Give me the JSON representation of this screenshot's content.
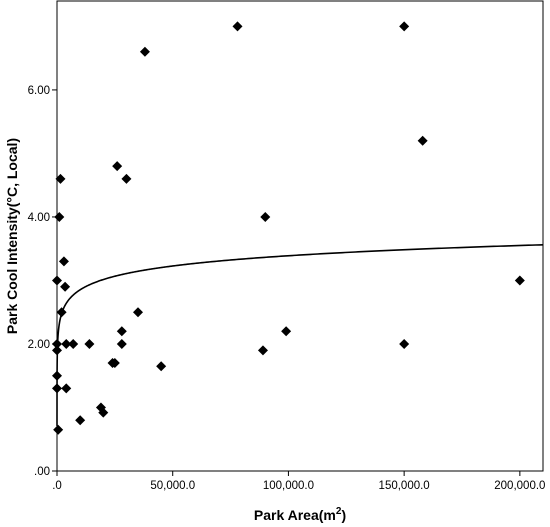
{
  "chart_data": {
    "type": "scatter",
    "xlabel": "Park Area",
    "xlabel_unit_base": "(m",
    "xlabel_unit_sup": "2",
    "xlabel_unit_end": ")",
    "ylabel": "Park Cool Intensity(°C, Local)",
    "xlim": [
      0,
      210000
    ],
    "ylim": [
      0,
      7.4
    ],
    "grid": false,
    "x_ticks": [
      {
        "value": 0,
        "label": ".0"
      },
      {
        "value": 50000,
        "label": "50,000.0"
      },
      {
        "value": 100000,
        "label": "100,000.0"
      },
      {
        "value": 150000,
        "label": "150,000.0"
      },
      {
        "value": 200000,
        "label": "200,000.0"
      }
    ],
    "y_ticks": [
      {
        "value": 0,
        "label": ".00"
      },
      {
        "value": 2,
        "label": "2.00"
      },
      {
        "value": 4,
        "label": "4.00"
      },
      {
        "value": 6,
        "label": "6.00"
      }
    ],
    "points": [
      {
        "x": 78000,
        "y": 7.0
      },
      {
        "x": 150000,
        "y": 7.0
      },
      {
        "x": 38000,
        "y": 6.6
      },
      {
        "x": 158000,
        "y": 5.2
      },
      {
        "x": 26000,
        "y": 4.8
      },
      {
        "x": 1500,
        "y": 4.6
      },
      {
        "x": 30000,
        "y": 4.6
      },
      {
        "x": 1000,
        "y": 4.0
      },
      {
        "x": 90000,
        "y": 4.0
      },
      {
        "x": 3000,
        "y": 3.3
      },
      {
        "x": 0,
        "y": 3.0
      },
      {
        "x": 3500,
        "y": 2.9
      },
      {
        "x": 200000,
        "y": 3.0
      },
      {
        "x": 2000,
        "y": 2.5
      },
      {
        "x": 35000,
        "y": 2.5
      },
      {
        "x": 28000,
        "y": 2.2
      },
      {
        "x": 99000,
        "y": 2.2
      },
      {
        "x": 0,
        "y": 2.0
      },
      {
        "x": 0,
        "y": 1.9
      },
      {
        "x": 4000,
        "y": 2.0
      },
      {
        "x": 7000,
        "y": 2.0
      },
      {
        "x": 14000,
        "y": 2.0
      },
      {
        "x": 28000,
        "y": 2.0
      },
      {
        "x": 150000,
        "y": 2.0
      },
      {
        "x": 89000,
        "y": 1.9
      },
      {
        "x": 24000,
        "y": 1.7
      },
      {
        "x": 25000,
        "y": 1.7
      },
      {
        "x": 45000,
        "y": 1.65
      },
      {
        "x": 0,
        "y": 1.5
      },
      {
        "x": 0,
        "y": 1.3
      },
      {
        "x": 4000,
        "y": 1.3
      },
      {
        "x": 19000,
        "y": 1.0
      },
      {
        "x": 20000,
        "y": 0.92
      },
      {
        "x": 10000,
        "y": 0.8
      },
      {
        "x": 500,
        "y": 0.65
      }
    ],
    "fit_line": {
      "type": "logarithmic",
      "a": 0.71,
      "b": 0.2327
    }
  }
}
